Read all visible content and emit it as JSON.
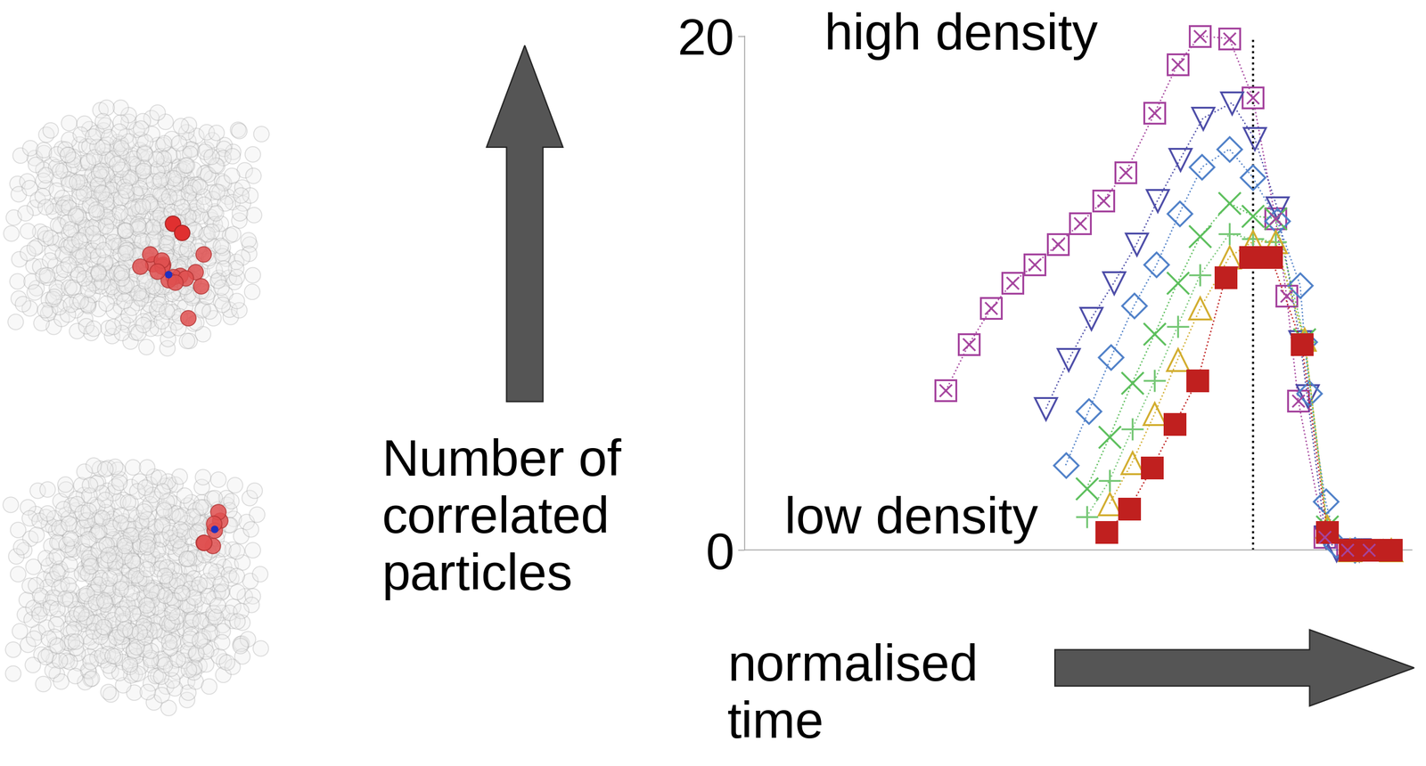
{
  "chart_data": {
    "type": "line",
    "ylabel": "Number of\ncorrelated\nparticles",
    "xlabel": "normalised\ntime",
    "top_label": "high density",
    "bottom_label": "low density",
    "xlim": [
      -0.6,
      1.5
    ],
    "xticks": [],
    "ylim": [
      0,
      20
    ],
    "yticks": [
      0,
      20
    ],
    "tick_labels": "y",
    "vline": 1,
    "line_style": "dotted",
    "series": [
      {
        "color": "#a5449e",
        "marker": "square_x",
        "x": [
          0.034,
          0.106,
          0.177,
          0.243,
          0.314,
          0.386,
          0.457,
          0.529,
          0.6,
          0.691,
          0.763,
          0.834,
          0.926,
          1.0,
          1.071,
          1.106,
          1.143,
          1.226,
          1.297,
          1.366
        ],
        "values": [
          6.2,
          8.0,
          9.4,
          10.4,
          11.1,
          11.9,
          12.7,
          13.6,
          14.7,
          17.0,
          18.9,
          20.0,
          19.9,
          17.6,
          12.9,
          9.9,
          5.8,
          0.5,
          0,
          0
        ]
      },
      {
        "color": "#4d4da8",
        "marker": "triangle_down",
        "x": [
          0.349,
          0.42,
          0.491,
          0.563,
          0.634,
          0.7,
          0.771,
          0.843,
          0.934,
          1.006,
          1.077,
          1.149,
          1.171,
          1.229,
          1.263,
          1.334
        ],
        "values": [
          5.5,
          7.4,
          9.0,
          10.4,
          11.9,
          13.6,
          15.2,
          16.8,
          17.4,
          16.0,
          13.3,
          8.1,
          6.0,
          0.5,
          0,
          0
        ]
      },
      {
        "color": "#4f80c8",
        "marker": "diamond",
        "x": [
          0.411,
          0.483,
          0.554,
          0.626,
          0.697,
          0.769,
          0.84,
          0.926,
          1.0,
          1.077,
          1.149,
          1.163,
          1.177,
          1.229,
          1.263,
          1.32
        ],
        "values": [
          3.3,
          5.4,
          7.5,
          9.5,
          11.1,
          13.1,
          14.9,
          15.6,
          14.5,
          12.8,
          10.3,
          8.1,
          6.1,
          1.9,
          0.2,
          0
        ]
      },
      {
        "color": "#5cbf5c",
        "marker": "x",
        "x": [
          0.477,
          0.549,
          0.62,
          0.691,
          0.763,
          0.834,
          0.926,
          1.0,
          1.071,
          1.163,
          1.234,
          1.306,
          1.377
        ],
        "values": [
          2.4,
          4.4,
          6.5,
          8.4,
          10.4,
          12.2,
          13.5,
          13.0,
          12.9,
          8.2,
          0.9,
          0,
          0
        ]
      },
      {
        "color": "#78c878",
        "marker": "plus",
        "x": [
          0.477,
          0.549,
          0.62,
          0.691,
          0.763,
          0.834,
          0.926,
          1.0,
          1.071,
          1.163,
          1.234,
          1.306
        ],
        "values": [
          1.3,
          2.7,
          4.7,
          6.6,
          8.7,
          10.7,
          12.3,
          12.1,
          12.0,
          8.1,
          0.9,
          0
        ]
      },
      {
        "color": "#d2ad2e",
        "marker": "triangle_up",
        "x": [
          0.549,
          0.62,
          0.691,
          0.763,
          0.834,
          0.926,
          1.0,
          1.071,
          1.163,
          1.234,
          1.306,
          1.434
        ],
        "values": [
          1.8,
          3.4,
          5.3,
          7.4,
          9.4,
          11.4,
          12.0,
          12.0,
          8.2,
          0.9,
          0,
          0
        ]
      },
      {
        "color": "#c0201f",
        "marker": "square",
        "x": [
          0.54,
          0.611,
          0.683,
          0.754,
          0.826,
          0.914,
          0.991,
          1.057,
          1.154,
          1.234,
          1.306,
          1.377,
          1.434
        ],
        "values": [
          0.7,
          1.6,
          3.2,
          4.9,
          6.6,
          10.6,
          11.4,
          11.4,
          8.0,
          0.7,
          0,
          0,
          0
        ]
      }
    ]
  }
}
